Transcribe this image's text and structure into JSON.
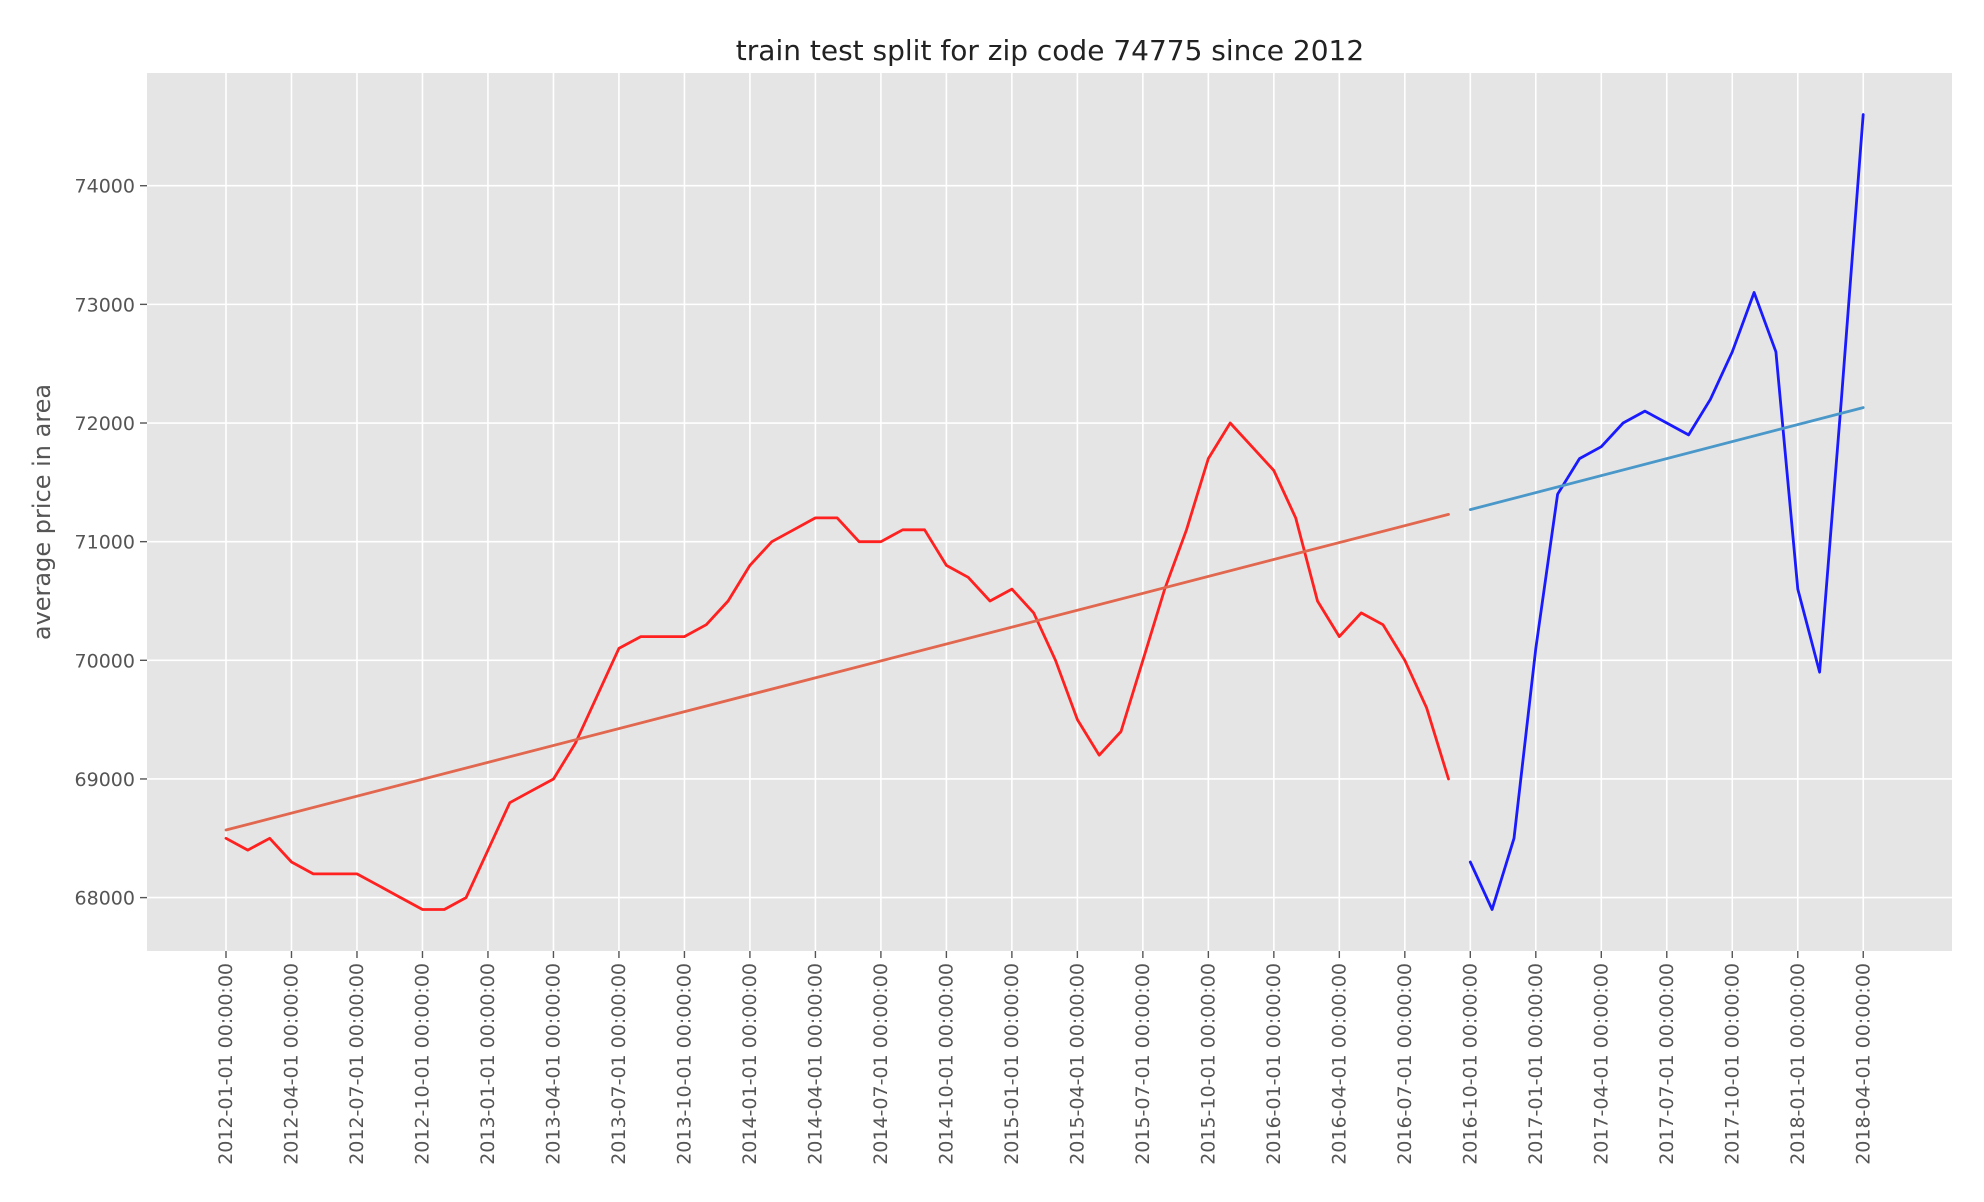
{
  "chart_data": {
    "type": "line",
    "title": "train test split for zip code 74775 since 2012",
    "xlabel": "",
    "ylabel": "average price in area",
    "ylim": [
      67550,
      74950
    ],
    "grid": true,
    "x_tick_labels": [
      "2012-01-01 00:00:00",
      "2012-04-01 00:00:00",
      "2012-07-01 00:00:00",
      "2012-10-01 00:00:00",
      "2013-01-01 00:00:00",
      "2013-04-01 00:00:00",
      "2013-07-01 00:00:00",
      "2013-10-01 00:00:00",
      "2014-01-01 00:00:00",
      "2014-04-01 00:00:00",
      "2014-07-01 00:00:00",
      "2014-10-01 00:00:00",
      "2015-01-01 00:00:00",
      "2015-04-01 00:00:00",
      "2015-07-01 00:00:00",
      "2015-10-01 00:00:00",
      "2016-01-01 00:00:00",
      "2016-04-01 00:00:00",
      "2016-07-01 00:00:00",
      "2016-10-01 00:00:00",
      "2017-01-01 00:00:00",
      "2017-04-01 00:00:00",
      "2017-07-01 00:00:00",
      "2017-10-01 00:00:00",
      "2018-01-01 00:00:00",
      "2018-04-01 00:00:00"
    ],
    "y_ticks": [
      68000,
      69000,
      70000,
      71000,
      72000,
      73000,
      74000
    ],
    "series": [
      {
        "color": "#ff2020",
        "x": [
          "2012-01",
          "2012-02",
          "2012-03",
          "2012-04",
          "2012-05",
          "2012-06",
          "2012-07",
          "2012-08",
          "2012-09",
          "2012-10",
          "2012-11",
          "2012-12",
          "2013-01",
          "2013-02",
          "2013-03",
          "2013-04",
          "2013-05",
          "2013-06",
          "2013-07",
          "2013-08",
          "2013-09",
          "2013-10",
          "2013-11",
          "2013-12",
          "2014-01",
          "2014-02",
          "2014-03",
          "2014-04",
          "2014-05",
          "2014-06",
          "2014-07",
          "2014-08",
          "2014-09",
          "2014-10",
          "2014-11",
          "2014-12",
          "2015-01",
          "2015-02",
          "2015-03",
          "2015-04",
          "2015-05",
          "2015-06",
          "2015-07",
          "2015-08",
          "2015-09",
          "2015-10",
          "2015-11",
          "2015-12",
          "2016-01",
          "2016-02",
          "2016-03",
          "2016-04",
          "2016-05",
          "2016-06",
          "2016-07",
          "2016-08",
          "2016-09"
        ],
        "values": [
          68500,
          68400,
          68500,
          68300,
          68200,
          68200,
          68200,
          68100,
          68000,
          67900,
          67900,
          68000,
          68400,
          68800,
          68900,
          69000,
          69300,
          69700,
          70100,
          70200,
          70200,
          70200,
          70300,
          70500,
          70800,
          71000,
          71100,
          71200,
          71200,
          71000,
          71000,
          71100,
          71100,
          70800,
          70700,
          70500,
          70600,
          70400,
          70000,
          69500,
          69200,
          69400,
          70000,
          70600,
          71100,
          71700,
          72000,
          71800,
          71600,
          71200,
          70500,
          70200,
          70400,
          70300,
          70000,
          69600,
          69000
        ]
      },
      {
        "color": "#e2674f",
        "x": [
          "2012-01",
          "2016-09"
        ],
        "values": [
          68570,
          71230
        ]
      },
      {
        "color": "#1a1aff",
        "x": [
          "2016-10",
          "2016-11",
          "2016-12",
          "2017-01",
          "2017-02",
          "2017-03",
          "2017-04",
          "2017-05",
          "2017-06",
          "2017-07",
          "2017-08",
          "2017-09",
          "2017-10",
          "2017-11",
          "2017-12",
          "2018-01",
          "2018-02",
          "2018-03",
          "2018-04"
        ],
        "values": [
          68300,
          67900,
          68500,
          70100,
          71400,
          71700,
          71800,
          72000,
          72100,
          72000,
          71900,
          72200,
          72600,
          73100,
          72600,
          70600,
          69900,
          72200,
          74600
        ]
      },
      {
        "color": "#4a98c9",
        "x": [
          "2016-10",
          "2018-04"
        ],
        "values": [
          71270,
          72130
        ]
      }
    ]
  }
}
